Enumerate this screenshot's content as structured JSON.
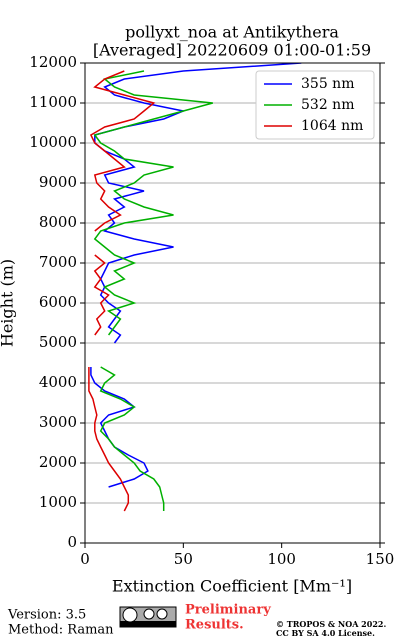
{
  "chart_data": {
    "type": "line",
    "title": "pollyxt_noa at Antikythera",
    "subtitle": "[Averaged] 20220609 01:00-01:59",
    "x_label": "Extinction Coefficient [Mm⁻¹]",
    "y_label": "Height (m)",
    "y": [
      0,
      200,
      400,
      600,
      800,
      1000,
      1200,
      1400,
      1600,
      1800,
      2000,
      2200,
      2400,
      2600,
      2800,
      3000,
      3200,
      3400,
      3600,
      3800,
      4000,
      4200,
      4400,
      4600,
      4800,
      5000,
      5200,
      5400,
      5600,
      5800,
      6000,
      6200,
      6400,
      6600,
      6800,
      7000,
      7200,
      7400,
      7600,
      7800,
      8000,
      8200,
      8400,
      8600,
      8800,
      9000,
      9200,
      9400,
      9600,
      9800,
      10000,
      10200,
      10400,
      10600,
      10800,
      11000,
      11200,
      11400,
      11600,
      11800,
      12000
    ],
    "series": [
      {
        "name": "355 nm",
        "color": "#0000ff",
        "values": [
          null,
          null,
          null,
          null,
          null,
          null,
          null,
          12,
          25,
          32,
          30,
          22,
          15,
          12,
          10,
          8,
          12,
          25,
          20,
          10,
          5,
          3,
          3,
          null,
          null,
          15,
          18,
          12,
          15,
          18,
          12,
          8,
          10,
          8,
          10,
          12,
          25,
          45,
          25,
          10,
          15,
          12,
          20,
          15,
          30,
          12,
          10,
          25,
          20,
          10,
          5,
          5,
          20,
          40,
          50,
          30,
          15,
          10,
          20,
          50,
          110
        ]
      },
      {
        "name": "532 nm",
        "color": "#00b000",
        "values": [
          null,
          null,
          null,
          null,
          40,
          40,
          39,
          38,
          35,
          28,
          25,
          20,
          15,
          12,
          8,
          10,
          20,
          25,
          18,
          8,
          10,
          15,
          8,
          null,
          null,
          null,
          12,
          15,
          18,
          12,
          25,
          15,
          10,
          20,
          15,
          25,
          15,
          10,
          5,
          8,
          20,
          45,
          30,
          20,
          15,
          25,
          30,
          45,
          20,
          15,
          8,
          5,
          20,
          35,
          50,
          65,
          25,
          15,
          10,
          30,
          null
        ]
      },
      {
        "name": "1064 nm",
        "color": "#dd0000",
        "values": [
          null,
          null,
          null,
          null,
          20,
          22,
          22,
          20,
          18,
          15,
          12,
          10,
          8,
          6,
          5,
          5,
          6,
          5,
          4,
          2,
          2,
          2,
          2,
          null,
          null,
          null,
          5,
          8,
          6,
          10,
          8,
          12,
          5,
          8,
          5,
          10,
          5,
          null,
          null,
          5,
          10,
          18,
          12,
          8,
          10,
          6,
          5,
          20,
          15,
          10,
          5,
          3,
          10,
          25,
          30,
          35,
          20,
          5,
          10,
          20,
          null
        ]
      }
    ],
    "xlim": [
      0,
      150
    ],
    "xticks": [
      0,
      50,
      100,
      150
    ],
    "ylim": [
      0,
      12000
    ],
    "yticks": [
      0,
      1000,
      2000,
      3000,
      4000,
      5000,
      6000,
      7000,
      8000,
      9000,
      10000,
      11000,
      12000
    ],
    "grid": true,
    "legend": "upper right",
    "version": "Version: 3.5",
    "method": "Method: Raman",
    "preliminary": [
      "Preliminary",
      "Results."
    ],
    "copyright": [
      "© TROPOS & NOA 2022.",
      "CC BY SA 4.0 License."
    ]
  }
}
